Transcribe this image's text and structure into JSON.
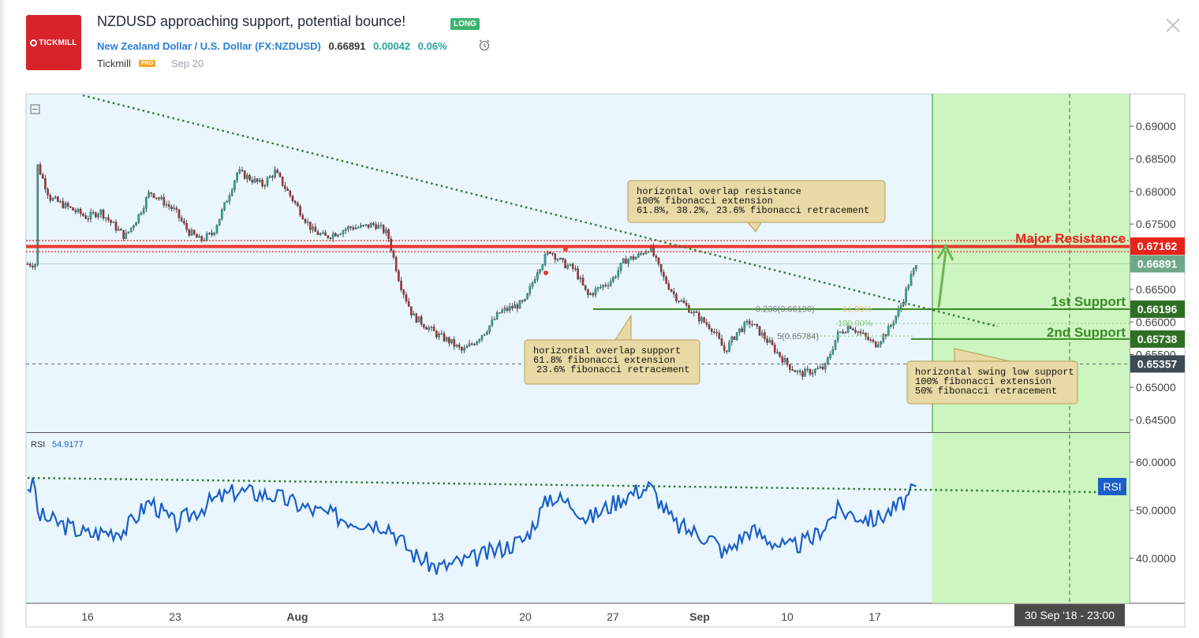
{
  "header": {
    "logo_text": "TICKMILL",
    "title": "NZDUSD approaching support, potential bounce!",
    "badge": "LONG",
    "symbol_name": "New Zealand Dollar / U.S. Dollar",
    "symbol_code": "(FX:NZDUSD)",
    "price": "0.66891",
    "change": "0.00042",
    "change_pct": "0.06%",
    "author": "Tickmill",
    "author_badge": "PRO",
    "published": "Sep 20"
  },
  "icons": {
    "alert": "alarm-clock-icon",
    "close": "close-icon",
    "collapse": "collapse-square-icon"
  },
  "colors": {
    "background": "#eaf6fd",
    "up_candle": "#26a69a",
    "down_candle": "#b02d2d",
    "resistance": "#e8231a",
    "support": "#3d8a2a",
    "rsi_line": "#1a5fc8",
    "target_zone": "#c9f5b8"
  },
  "chart_data": [
    {
      "type": "candlestick",
      "series": [
        {
          "name": "NZDUSD"
        }
      ],
      "y_ticks": [
        "0.69000",
        "0.68500",
        "0.68000",
        "0.67500",
        "0.66500",
        "0.66000",
        "0.65500",
        "0.65000",
        "0.64500"
      ],
      "ylim": [
        0.6425,
        0.6925
      ],
      "x_ticks": [
        "16",
        "23",
        "Aug",
        "13",
        "20",
        "27",
        "Sep",
        "10",
        "17"
      ],
      "xlim": [
        "2018-07-12",
        "2018-10-05"
      ],
      "price_path": [
        [
          "2018-07-12",
          0.684
        ],
        [
          "2018-07-13",
          0.679
        ],
        [
          "2018-07-16",
          0.676
        ],
        [
          "2018-07-17",
          0.677
        ],
        [
          "2018-07-18",
          0.675
        ],
        [
          "2018-07-19",
          0.673
        ],
        [
          "2018-07-20",
          0.676
        ],
        [
          "2018-07-21",
          0.68
        ],
        [
          "2018-07-23",
          0.677
        ],
        [
          "2018-07-24",
          0.674
        ],
        [
          "2018-07-25",
          0.6725
        ],
        [
          "2018-07-26",
          0.6735
        ],
        [
          "2018-07-27",
          0.678
        ],
        [
          "2018-07-28",
          0.683
        ],
        [
          "2018-07-30",
          0.681
        ],
        [
          "2018-07-31",
          0.683
        ],
        [
          "2018-08-01",
          0.68
        ],
        [
          "2018-08-02",
          0.677
        ],
        [
          "2018-08-03",
          0.674
        ],
        [
          "2018-08-04",
          0.673
        ],
        [
          "2018-08-06",
          0.6745
        ],
        [
          "2018-08-07",
          0.6745
        ],
        [
          "2018-08-08",
          0.675
        ],
        [
          "2018-08-09",
          0.6735
        ],
        [
          "2018-08-10",
          0.666
        ],
        [
          "2018-08-11",
          0.661
        ],
        [
          "2018-08-13",
          0.658
        ],
        [
          "2018-08-14",
          0.657
        ],
        [
          "2018-08-15",
          0.6555
        ],
        [
          "2018-08-16",
          0.657
        ],
        [
          "2018-08-17",
          0.659
        ],
        [
          "2018-08-18",
          0.6615
        ],
        [
          "2018-08-20",
          0.663
        ],
        [
          "2018-08-21",
          0.668
        ],
        [
          "2018-08-22",
          0.671
        ],
        [
          "2018-08-23",
          0.669
        ],
        [
          "2018-08-24",
          0.668
        ],
        [
          "2018-08-25",
          0.664
        ],
        [
          "2018-08-27",
          0.6665
        ],
        [
          "2018-08-28",
          0.6695
        ],
        [
          "2018-08-29",
          0.67
        ],
        [
          "2018-08-30",
          0.6715
        ],
        [
          "2018-08-31",
          0.667
        ],
        [
          "2018-09-01",
          0.664
        ],
        [
          "2018-09-03",
          0.6605
        ],
        [
          "2018-09-04",
          0.659
        ],
        [
          "2018-09-05",
          0.6555
        ],
        [
          "2018-09-06",
          0.6585
        ],
        [
          "2018-09-07",
          0.66
        ],
        [
          "2018-09-08",
          0.658
        ],
        [
          "2018-09-10",
          0.6535
        ],
        [
          "2018-09-11",
          0.652
        ],
        [
          "2018-09-12",
          0.6525
        ],
        [
          "2018-09-13",
          0.653
        ],
        [
          "2018-09-14",
          0.658
        ],
        [
          "2018-09-15",
          0.6595
        ],
        [
          "2018-09-17",
          0.6565
        ],
        [
          "2018-09-18",
          0.6585
        ],
        [
          "2018-09-19",
          0.662
        ],
        [
          "2018-09-20",
          0.6675
        ],
        [
          "2018-09-20.5",
          0.6689
        ]
      ],
      "levels": [
        {
          "label": "Major Resistance",
          "value": 0.67162,
          "tag": "0.67162"
        },
        {
          "label": "",
          "value": 0.66891,
          "tag": "0.66891"
        },
        {
          "label": "1st Support",
          "value": 0.66196,
          "tag": "0.66196"
        },
        {
          "label": "2nd Support",
          "value": 0.65738,
          "tag": "0.65738"
        },
        {
          "label": "",
          "value": 0.65357,
          "tag": "0.65357"
        }
      ],
      "fib_labels": [
        "0.236(0.66190)",
        "61.80%",
        "100.00%",
        "5(0.65784)"
      ],
      "annotations": [
        {
          "lines": [
            "horizontal overlap resistance",
            "100% fibonacci extension",
            "61.8%, 38.2%, 23.6% fibonacci retracement"
          ]
        },
        {
          "lines": [
            "horizontal overlap support",
            "61.8% fibonacci extension",
            "23.6% fibonacci retracement"
          ]
        },
        {
          "lines": [
            "horizontal swing low support",
            "100% fibonacci extension",
            "50% fibonacci retracement"
          ]
        }
      ],
      "time_label": "30 Sep '18 - 23:00"
    },
    {
      "type": "line",
      "title": "RSI",
      "series": [
        {
          "name": "RSI",
          "last_value": "54.9177"
        }
      ],
      "y_ticks": [
        "60.0000",
        "50.0000",
        "40.0000"
      ],
      "ylim": [
        30,
        65
      ],
      "rsi_path": [
        [
          "2018-07-12",
          49
        ],
        [
          "2018-07-16",
          45
        ],
        [
          "2018-07-19",
          46
        ],
        [
          "2018-07-21",
          52
        ],
        [
          "2018-07-23",
          47
        ],
        [
          "2018-07-26",
          52
        ],
        [
          "2018-07-28",
          54
        ],
        [
          "2018-07-31",
          53
        ],
        [
          "2018-08-03",
          50
        ],
        [
          "2018-08-06",
          48
        ],
        [
          "2018-08-09",
          47
        ],
        [
          "2018-08-11",
          41
        ],
        [
          "2018-08-13",
          38
        ],
        [
          "2018-08-16",
          40
        ],
        [
          "2018-08-20",
          44
        ],
        [
          "2018-08-22",
          53
        ],
        [
          "2018-08-24",
          51
        ],
        [
          "2018-08-25",
          48
        ],
        [
          "2018-08-28",
          53
        ],
        [
          "2018-08-30",
          55
        ],
        [
          "2018-09-01",
          47
        ],
        [
          "2018-09-04",
          44
        ],
        [
          "2018-09-05",
          41
        ],
        [
          "2018-09-07",
          46
        ],
        [
          "2018-09-10",
          42
        ],
        [
          "2018-09-12",
          44
        ],
        [
          "2018-09-14",
          50
        ],
        [
          "2018-09-17",
          48
        ],
        [
          "2018-09-19",
          51
        ],
        [
          "2018-09-20.5",
          55
        ]
      ]
    }
  ]
}
